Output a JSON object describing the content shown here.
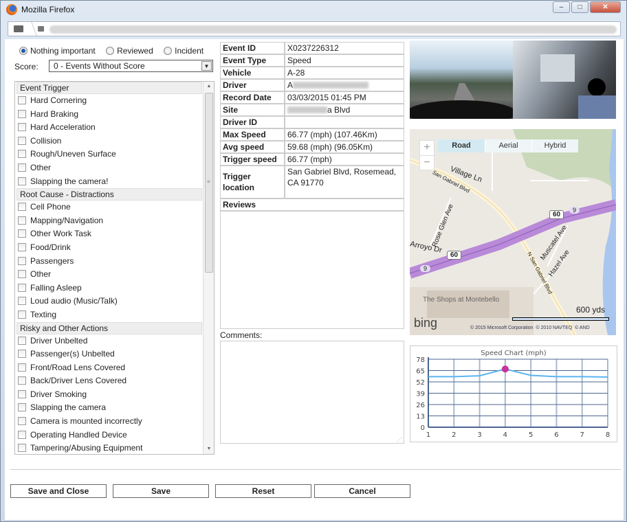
{
  "window": {
    "title": "Mozilla Firefox",
    "minimize": "‒",
    "maximize": "□",
    "close": "✕"
  },
  "classification": {
    "options": [
      "Nothing important",
      "Reviewed",
      "Incident"
    ],
    "selected": "Nothing important"
  },
  "score": {
    "label": "Score:",
    "value": "0 - Events Without Score"
  },
  "checklist": [
    {
      "section": "Event Trigger",
      "items": [
        "Hard Cornering",
        "Hard Braking",
        "Hard Acceleration",
        "Collision",
        "Rough/Uneven Surface",
        "Other",
        "Slapping the camera!"
      ]
    },
    {
      "section": "Root Cause - Distractions",
      "items": [
        "Cell Phone",
        "Mapping/Navigation",
        "Other Work Task",
        "Food/Drink",
        "Passengers",
        "Other",
        "Falling Asleep",
        "Loud audio (Music/Talk)",
        "Texting"
      ]
    },
    {
      "section": "Risky and Other Actions",
      "items": [
        "Driver Unbelted",
        "Passenger(s) Unbelted",
        "Front/Road Lens Covered",
        "Back/Driver Lens Covered",
        "Driver Smoking",
        "Slapping the camera",
        "Camera is mounted incorrectly",
        "Operating Handled Device",
        "Tampering/Abusing Equipment"
      ]
    }
  ],
  "event": {
    "rows": [
      {
        "k": "Event ID",
        "v": "X0237226312"
      },
      {
        "k": "Event Type",
        "v": "Speed"
      },
      {
        "k": "Vehicle",
        "v": "A-28"
      },
      {
        "k": "Driver",
        "v": "A"
      },
      {
        "k": "Record Date",
        "v": "03/03/2015 01:45 PM"
      },
      {
        "k": "Site",
        "v": "a Blvd"
      },
      {
        "k": "Driver ID",
        "v": ""
      },
      {
        "k": "Max Speed",
        "v": "66.77 (mph) (107.46Km)"
      },
      {
        "k": "Avg speed",
        "v": "59.68 (mph) (96.05Km)"
      },
      {
        "k": "Trigger speed",
        "v": "66.77 (mph)"
      },
      {
        "k": "Trigger location",
        "v": "San Gabriel Blvd, Rosemead, CA 91770"
      }
    ],
    "reviews_label": "Reviews",
    "comments_label": "Comments:"
  },
  "map": {
    "modes": [
      "Road",
      "Aerial",
      "Hybrid"
    ],
    "active_mode": "Road",
    "zoom_in": "+",
    "zoom_out": "−",
    "scale": "600 yds",
    "brand": "bing",
    "labels": [
      "Village Ln",
      "San Gabriel Blvd",
      "Rose Glen Ave",
      "Arroyo Dr",
      "N San Gabriel Blvd",
      "Muscatel Ave",
      "Hazel Ave",
      "The Shops at Montebello",
      "60",
      "60",
      "9",
      "9"
    ],
    "copyright": [
      "© 2015 Microsoft Corporation",
      "© 2010 NAVTEQ",
      "© AND"
    ]
  },
  "chart_data": {
    "type": "line",
    "title": "Speed Chart (mph)",
    "x": [
      1,
      2,
      3,
      4,
      5,
      6,
      7,
      8
    ],
    "values": [
      58,
      58,
      59,
      66.77,
      59.5,
      58,
      58,
      57.5
    ],
    "highlight_index": 3,
    "ylim": [
      0,
      78
    ],
    "yticks": [
      0,
      13,
      26,
      39,
      52,
      65,
      78
    ],
    "grid": true,
    "line_color": "#5ab4f0",
    "marker_color": "#c8339a"
  },
  "buttons": {
    "save_close": "Save and Close",
    "save": "Save",
    "reset": "Reset",
    "cancel": "Cancel"
  }
}
